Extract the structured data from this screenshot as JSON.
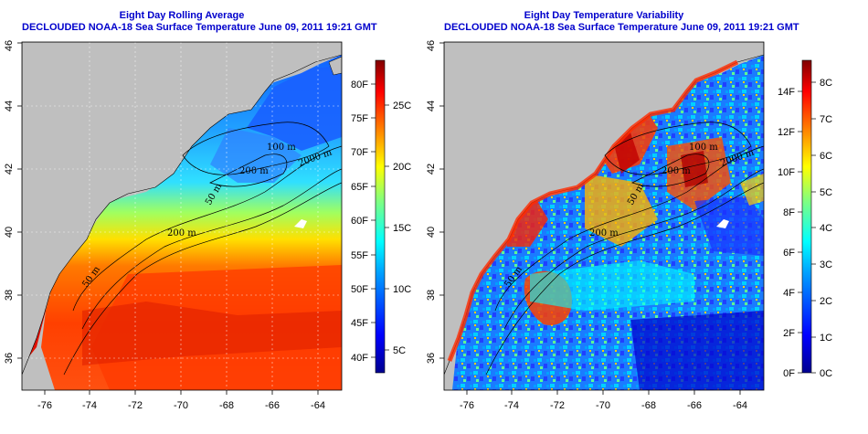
{
  "left_panel": {
    "title_line1": "Eight Day Rolling Average",
    "title_line2": "DECLOUDED NOAA-18 Sea Surface Temperature June 09, 2011 19:21 GMT",
    "x_ticks": [
      "-76",
      "-74",
      "-72",
      "-70",
      "-68",
      "-66",
      "-64"
    ],
    "y_ticks": [
      "36",
      "38",
      "40",
      "42",
      "44",
      "46"
    ],
    "colorbar_f": [
      "40F",
      "45F",
      "50F",
      "55F",
      "60F",
      "65F",
      "70F",
      "75F",
      "80F"
    ],
    "colorbar_c": [
      "5C",
      "10C",
      "15C",
      "20C",
      "25C"
    ],
    "contour_labels": [
      "50 m",
      "200 m",
      "100 m",
      "200 m",
      "2000 m",
      "50 m"
    ]
  },
  "right_panel": {
    "title_line1": "Eight Day Temperature Variability",
    "title_line2": "DECLOUDED NOAA-18 Sea Surface Temperature June 09, 2011 19:21 GMT",
    "x_ticks": [
      "-76",
      "-74",
      "-72",
      "-70",
      "-68",
      "-66",
      "-64"
    ],
    "y_ticks": [
      "36",
      "38",
      "40",
      "42",
      "44",
      "46"
    ],
    "colorbar_f": [
      "0F",
      "2F",
      "4F",
      "6F",
      "8F",
      "10F",
      "12F",
      "14F"
    ],
    "colorbar_c": [
      "0C",
      "1C",
      "2C",
      "3C",
      "4C",
      "5C",
      "6C",
      "7C",
      "8C"
    ],
    "contour_labels": [
      "50 m",
      "200 m",
      "100 m",
      "200 m",
      "2000 m",
      "50 m"
    ]
  },
  "colors": {
    "title": "#0000cc",
    "land": "#bfbfbf",
    "jet": [
      "#00008f",
      "#0000ff",
      "#0080ff",
      "#00ffff",
      "#80ff80",
      "#ffff00",
      "#ff8000",
      "#ff0000",
      "#800000"
    ]
  }
}
